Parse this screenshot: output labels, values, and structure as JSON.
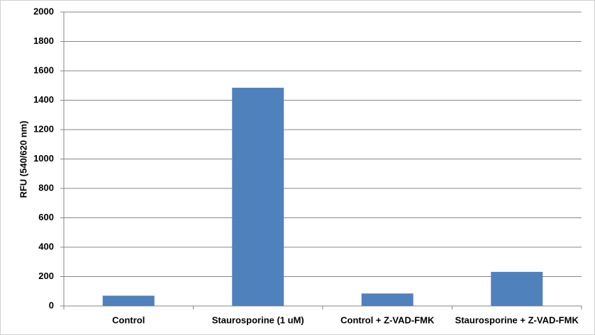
{
  "chart_data": {
    "type": "bar",
    "y_label": "RFU (540/620 nm)",
    "categories": [
      "Control",
      "Staurosporine (1 uM)",
      "Control + Z-VAD-FMK",
      "Staurosporine + Z-VAD-FMK"
    ],
    "values": [
      70,
      1485,
      85,
      232
    ],
    "color": "#4f81bd",
    "ylim": [
      0,
      2000
    ],
    "yticks": [
      0,
      200,
      400,
      600,
      800,
      1000,
      1200,
      1400,
      1600,
      1800,
      2000
    ],
    "grid": true
  }
}
